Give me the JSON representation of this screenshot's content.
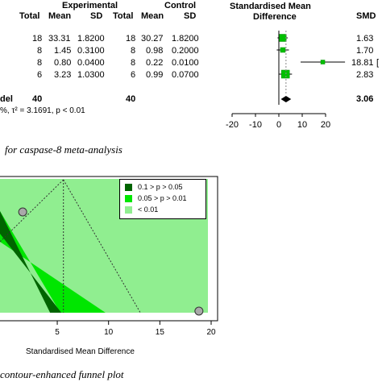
{
  "chart_data": [
    {
      "type": "table",
      "headers": {
        "experimental": "Experimental",
        "control": "Control",
        "smd_group": "Standardised Mean",
        "smd_group_line2": "Difference",
        "total": "Total",
        "mean": "Mean",
        "sd": "SD",
        "total_c": "Total",
        "mean_c": "Mean",
        "sd_c": "SD",
        "smd": "SMD"
      },
      "rows": [
        {
          "total_e": "18",
          "mean_e": "33.31",
          "sd_e": "1.8200",
          "total_c": "18",
          "mean_c": "30.27",
          "sd_c": "1.8200",
          "smd": "1.63",
          "smd_value": 1.63
        },
        {
          "total_e": "8",
          "mean_e": "1.45",
          "sd_e": "0.3100",
          "total_c": "8",
          "mean_c": "0.98",
          "sd_c": "0.2000",
          "smd": "1.70",
          "smd_value": 1.7
        },
        {
          "total_e": "8",
          "mean_e": "0.80",
          "sd_e": "0.0400",
          "total_c": "8",
          "mean_c": "0.22",
          "sd_c": "0.0100",
          "smd": "18.81",
          "smd_value": 18.81
        },
        {
          "total_e": "6",
          "mean_e": "3.23",
          "sd_e": "1.0300",
          "total_c": "6",
          "mean_c": "0.99",
          "sd_c": "0.0700",
          "smd": "2.83",
          "smd_value": 2.83
        }
      ],
      "model_row": {
        "label": "del",
        "total_e": "40",
        "total_c": "40",
        "smd": "3.06",
        "smd_value": 3.06
      },
      "heterogeneity": "%, τ² = 3.1691, p < 0.01",
      "axis_ticks": [
        -20,
        -10,
        0,
        10,
        20
      ],
      "xlim": [
        -20,
        20
      ],
      "caption": "for caspase-8 meta-analysis"
    },
    {
      "type": "scatter",
      "title": "",
      "xlabel": "Standardised Mean Difference",
      "ylabel": "",
      "x_ticks": [
        5,
        10,
        15,
        20
      ],
      "legend": {
        "position": "top-right",
        "entries": [
          "0.1 > p > 0.05",
          "0.05 > p > 0.01",
          "< 0.01"
        ]
      },
      "colors": {
        "region_01": "#006400",
        "region_005": "#00e600",
        "region_sig": "#90ee90",
        "point": "#a9a9a9"
      },
      "points": [
        {
          "x": 1.63
        },
        {
          "x": 18.81
        }
      ],
      "pooled_estimate": 5.6,
      "caption": "contour-enhanced funnel plot"
    }
  ]
}
